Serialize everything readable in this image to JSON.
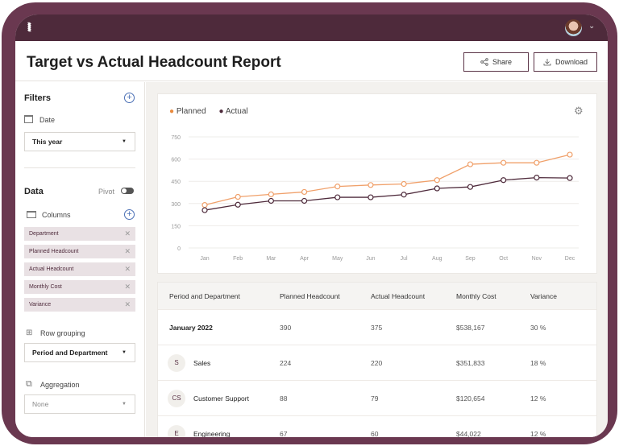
{
  "app": {
    "logo": "RRR",
    "title": "Target vs Actual Headcount Report"
  },
  "actions": {
    "share": "Share",
    "download": "Download"
  },
  "sidebar": {
    "filters_title": "Filters",
    "date_label": "Date",
    "date_value": "This year",
    "data_title": "Data",
    "pivot_label": "Pivot",
    "pivot_on": false,
    "columns_label": "Columns",
    "columns": [
      "Department",
      "Planned Headcount",
      "Actual Headcount",
      "Monthly Cost",
      "Variance"
    ],
    "row_grouping_label": "Row grouping",
    "row_grouping_value": "Period and Department",
    "aggregation_label": "Aggregation",
    "aggregation_value": "None"
  },
  "chart_data": {
    "type": "line",
    "categories": [
      "Jan",
      "Feb",
      "Mar",
      "Apr",
      "May",
      "Jun",
      "Jul",
      "Aug",
      "Sep",
      "Oct",
      "Nov",
      "Dec"
    ],
    "series": [
      {
        "name": "Planned",
        "color": "#f0a06a",
        "values": [
          290,
          345,
          362,
          378,
          415,
          425,
          432,
          458,
          565,
          575,
          575,
          630
        ]
      },
      {
        "name": "Actual",
        "color": "#4e2a3b",
        "values": [
          255,
          292,
          318,
          318,
          342,
          342,
          360,
          402,
          412,
          458,
          475,
          472
        ]
      }
    ],
    "yticks": [
      "0",
      "150",
      "300",
      "450",
      "600",
      "750"
    ],
    "ylim": [
      0,
      750
    ],
    "grid": true,
    "legend": "top-left"
  },
  "table": {
    "headers": [
      "Period and Department",
      "Planned Headcount",
      "Actual Headcount",
      "Monthly Cost",
      "Variance"
    ],
    "rows": [
      {
        "badge": "",
        "name": "January 2022",
        "planned": "390",
        "actual": "375",
        "cost": "$538,167",
        "variance": "30 %"
      },
      {
        "badge": "S",
        "name": "Sales",
        "planned": "224",
        "actual": "220",
        "cost": "$351,833",
        "variance": "18 %"
      },
      {
        "badge": "CS",
        "name": "Customer Support",
        "planned": "88",
        "actual": "79",
        "cost": "$120,654",
        "variance": "12 %"
      },
      {
        "badge": "E",
        "name": "Engineering",
        "planned": "67",
        "actual": "60",
        "cost": "$44,022",
        "variance": "12 %"
      }
    ]
  }
}
